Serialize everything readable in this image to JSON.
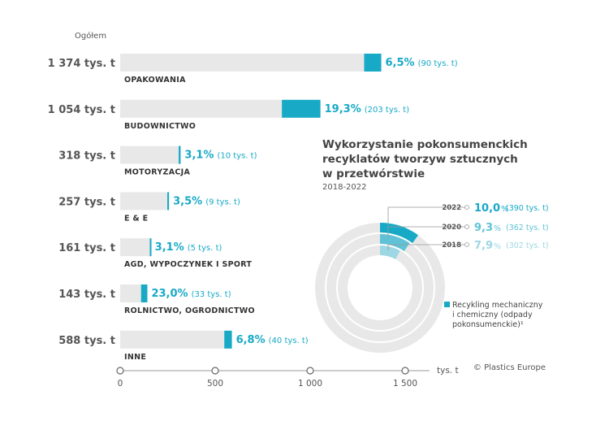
{
  "chart_data": [
    {
      "type": "bar",
      "header": "Ogółem",
      "categories": [
        "OPAKOWANIA",
        "BUDOWNICTWO",
        "MOTORYZACJA",
        "E & E",
        "AGD, WYPOCZYNEK I SPORT",
        "ROLNICTWO, OGRODNICTWO",
        "INNE"
      ],
      "totals_label": [
        "1 374 tys. t",
        "1 054 tys. t",
        "318 tys. t",
        "257 tys. t",
        "161 tys. t",
        "143 tys. t",
        "588 tys. t"
      ],
      "totals": [
        1374,
        1054,
        318,
        257,
        161,
        143,
        588
      ],
      "recycled": [
        90,
        203,
        10,
        9,
        5,
        33,
        40
      ],
      "recycled_pct_label": [
        "6,5%",
        "19,3%",
        "3,1%",
        "3,5%",
        "3,1%",
        "23,0%",
        "6,8%"
      ],
      "recycled_abs_label": [
        "(90 tys. t)",
        "(203 tys. t)",
        "(10 tys. t)",
        "(9 tys. t)",
        "(5 tys. t)",
        "(33 tys. t)",
        "(40 tys. t)"
      ],
      "xlim": [
        0,
        1500
      ],
      "xticks": [
        0,
        500,
        1000,
        1500
      ],
      "xtick_labels": [
        "0",
        "500",
        "1 000",
        "1 500"
      ],
      "xunit": "tys. t",
      "colors": {
        "total": "#e8e8e8",
        "recycled": "#17a9c6",
        "axis": "#999999"
      }
    },
    {
      "type": "pie",
      "title_lines": [
        "Wykorzystanie pokonsumenckich",
        "recyklatów tworzyw sztucznych",
        "w przetwórstwie"
      ],
      "subtitle": "2018-2022",
      "rings": [
        {
          "year": "2022",
          "pct": 10.0,
          "pct_label": "10,0",
          "pct_sign": "%",
          "abs_label": "(390 tys. t)",
          "color": "#17a9c6"
        },
        {
          "year": "2020",
          "pct": 9.3,
          "pct_label": "9,3",
          "pct_sign": "%",
          "abs_label": "(362 tys. t)",
          "color": "#5fc2d6"
        },
        {
          "year": "2018",
          "pct": 7.9,
          "pct_label": "7,9",
          "pct_sign": "%",
          "abs_label": "(302 tys. t)",
          "color": "#9dd7e3"
        }
      ],
      "legend": [
        "Recykling mechaniczny",
        "i chemiczny (odpady",
        "pokonsumenckie)¹"
      ],
      "colors": {
        "ring_bg": "#e8e8e8"
      }
    }
  ],
  "copyright": "© Plastics Europe"
}
